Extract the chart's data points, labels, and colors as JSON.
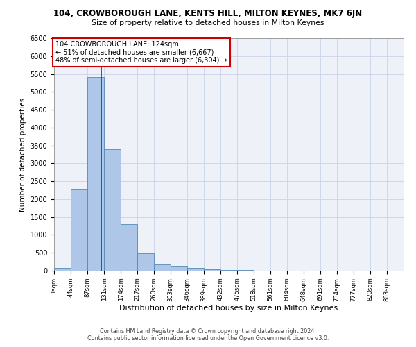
{
  "title": "104, CROWBOROUGH LANE, KENTS HILL, MILTON KEYNES, MK7 6JN",
  "subtitle": "Size of property relative to detached houses in Milton Keynes",
  "xlabel": "Distribution of detached houses by size in Milton Keynes",
  "ylabel": "Number of detached properties",
  "footer_line1": "Contains HM Land Registry data © Crown copyright and database right 2024.",
  "footer_line2": "Contains public sector information licensed under the Open Government Licence v3.0.",
  "annotation_line1": "104 CROWBOROUGH LANE: 124sqm",
  "annotation_line2": "← 51% of detached houses are smaller (6,667)",
  "annotation_line3": "48% of semi-detached houses are larger (6,304) →",
  "property_size": 124,
  "bin_edges": [
    1,
    44,
    87,
    131,
    174,
    217,
    260,
    303,
    346,
    389,
    432,
    475,
    518,
    561,
    604,
    648,
    691,
    734,
    777,
    820,
    863
  ],
  "bar_values": [
    75,
    2270,
    5420,
    3390,
    1295,
    490,
    170,
    115,
    85,
    45,
    20,
    10,
    5,
    5,
    3,
    2,
    2,
    1,
    1,
    1
  ],
  "bar_color": "#aec6e8",
  "bar_edge_color": "#5589b8",
  "vline_color": "#cc0000",
  "vline_x": 124,
  "annotation_box_color": "#cc0000",
  "grid_color": "#c8d4e8",
  "background_color": "#eef2f8",
  "ylim": [
    0,
    6500
  ],
  "yticks": [
    0,
    500,
    1000,
    1500,
    2000,
    2500,
    3000,
    3500,
    4000,
    4500,
    5000,
    5500,
    6000,
    6500
  ]
}
